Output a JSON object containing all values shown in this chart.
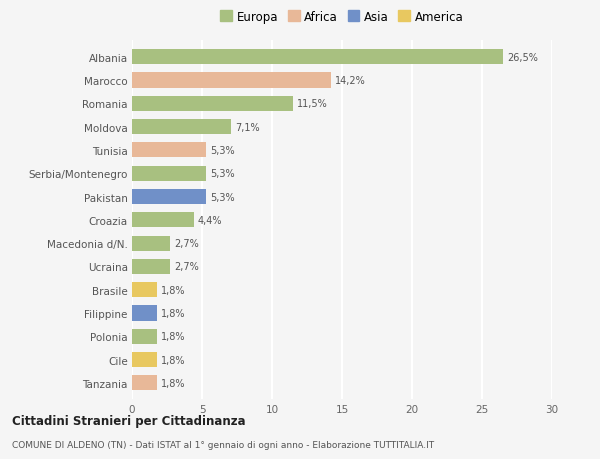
{
  "countries": [
    "Albania",
    "Marocco",
    "Romania",
    "Moldova",
    "Tunisia",
    "Serbia/Montenegro",
    "Pakistan",
    "Croazia",
    "Macedonia d/N.",
    "Ucraina",
    "Brasile",
    "Filippine",
    "Polonia",
    "Cile",
    "Tanzania"
  ],
  "values": [
    26.5,
    14.2,
    11.5,
    7.1,
    5.3,
    5.3,
    5.3,
    4.4,
    2.7,
    2.7,
    1.8,
    1.8,
    1.8,
    1.8,
    1.8
  ],
  "labels": [
    "26,5%",
    "14,2%",
    "11,5%",
    "7,1%",
    "5,3%",
    "5,3%",
    "5,3%",
    "4,4%",
    "2,7%",
    "2,7%",
    "1,8%",
    "1,8%",
    "1,8%",
    "1,8%",
    "1,8%"
  ],
  "continents": [
    "Europa",
    "Africa",
    "Europa",
    "Europa",
    "Africa",
    "Europa",
    "Asia",
    "Europa",
    "Europa",
    "Europa",
    "America",
    "Asia",
    "Europa",
    "America",
    "Africa"
  ],
  "colors": {
    "Europa": "#a8c080",
    "Africa": "#e8b898",
    "Asia": "#7090c8",
    "America": "#e8c860"
  },
  "xlim": [
    0,
    30
  ],
  "xticks": [
    0,
    5,
    10,
    15,
    20,
    25,
    30
  ],
  "title": "Cittadini Stranieri per Cittadinanza",
  "subtitle": "COMUNE DI ALDENO (TN) - Dati ISTAT al 1° gennaio di ogni anno - Elaborazione TUTTITALIA.IT",
  "background_color": "#f5f5f5",
  "plot_bg_color": "#f5f5f5",
  "grid_color": "#ffffff",
  "bar_height": 0.65,
  "legend_order": [
    "Europa",
    "Africa",
    "Asia",
    "America"
  ]
}
